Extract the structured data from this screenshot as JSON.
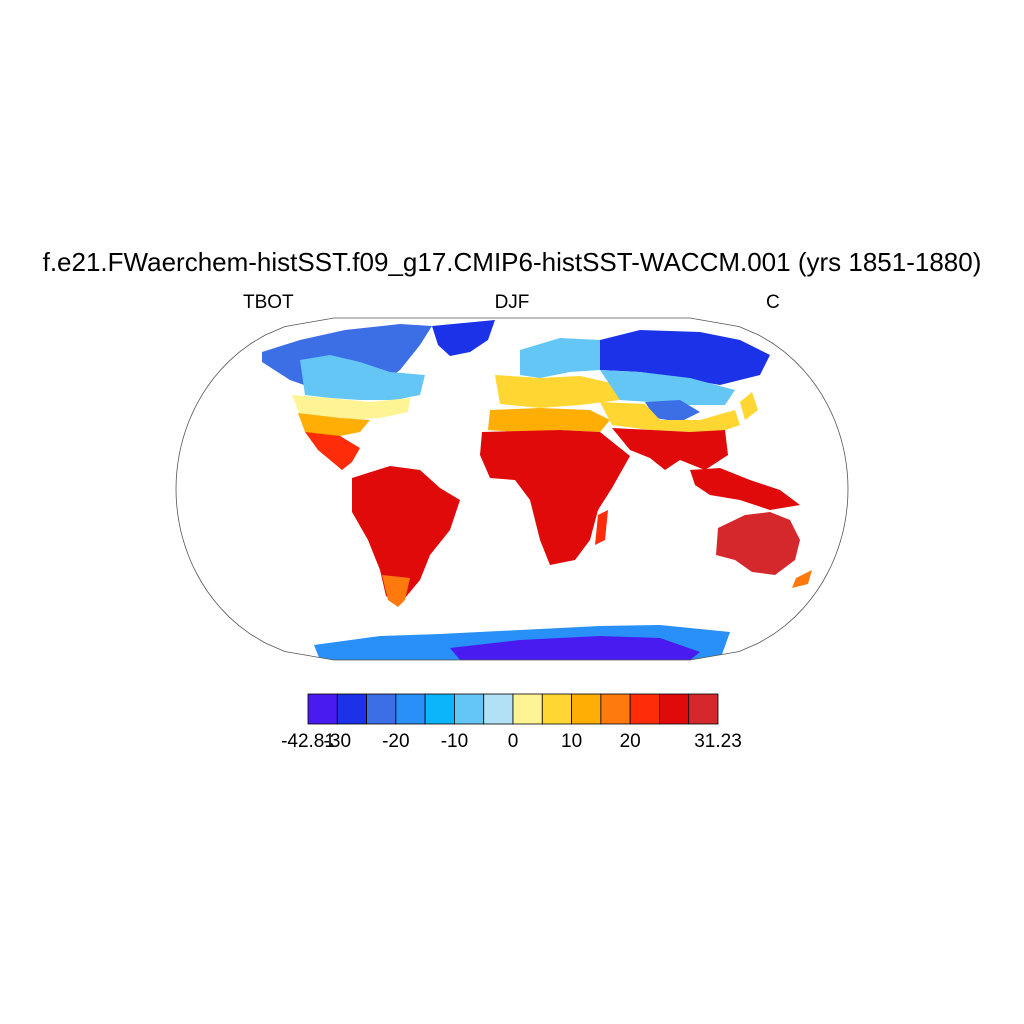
{
  "title": "f.e21.FWaerchem-histSST.f09_g17.CMIP6-histSST-WACCM.001 (yrs 1851-1880)",
  "left_string": "TBOT",
  "center_string": "DJF",
  "right_string": "C",
  "map": {
    "projection": "Robinson",
    "variable": "TBOT",
    "season": "DJF",
    "fill": "land only (ocean blank)"
  },
  "colorbar": {
    "colors": [
      "#4a1bf0",
      "#1c32e8",
      "#3c6ee6",
      "#2890f8",
      "#0cb4fa",
      "#63c6f4",
      "#b2e0f4",
      "#fff494",
      "#ffd632",
      "#ffae06",
      "#ff7a0c",
      "#ff2c0a",
      "#e00a0a",
      "#d4282c"
    ],
    "min_label": "-42.81",
    "max_label": "31.23",
    "tick_labels": [
      "-30",
      "-20",
      "-10",
      "0",
      "10",
      "20"
    ],
    "label_positions": [
      0,
      1,
      3,
      5,
      7,
      9,
      11,
      14
    ]
  }
}
